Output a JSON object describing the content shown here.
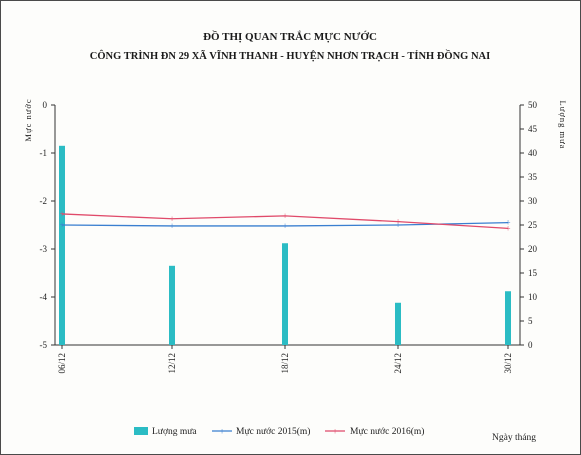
{
  "chart_data": {
    "type": "bar+line",
    "title": "ĐỒ THỊ QUAN TRẮC MỰC NƯỚC",
    "subtitle": "CÔNG TRÌNH ĐN 29 XÃ VĨNH THANH - HUYỆN NHƠN TRẠCH - TỈNH ĐỒNG NAI",
    "ylabel_left": "Mực nước",
    "ylabel_right": "Lượng mưa",
    "xlabel": "Ngày tháng",
    "ylim_left": [
      -5,
      0
    ],
    "ylim_right": [
      0,
      50
    ],
    "yticks_left": [
      "0",
      "-1",
      "-2",
      "-3",
      "-4",
      "-5"
    ],
    "yticks_right": [
      "50",
      "45",
      "40",
      "35",
      "30",
      "25",
      "20",
      "15",
      "10",
      "5",
      "0"
    ],
    "categories": [
      "06/12",
      "12/12",
      "18/12",
      "24/12",
      "30/12"
    ],
    "bars": {
      "name": "Lượng mưa",
      "color": "#2bbcc4",
      "values": [
        41.5,
        16.5,
        21.2,
        8.8,
        11.2
      ]
    },
    "series": [
      {
        "name": "Mực nước 2015(m)",
        "color": "#3a7fd0",
        "values": [
          -2.5,
          -2.52,
          -2.52,
          -2.5,
          -2.45
        ]
      },
      {
        "name": "Mực nước 2016(m)",
        "color": "#e04a6a",
        "values": [
          -2.27,
          -2.37,
          -2.31,
          -2.43,
          -2.57
        ]
      }
    ],
    "legend": "bottom"
  }
}
